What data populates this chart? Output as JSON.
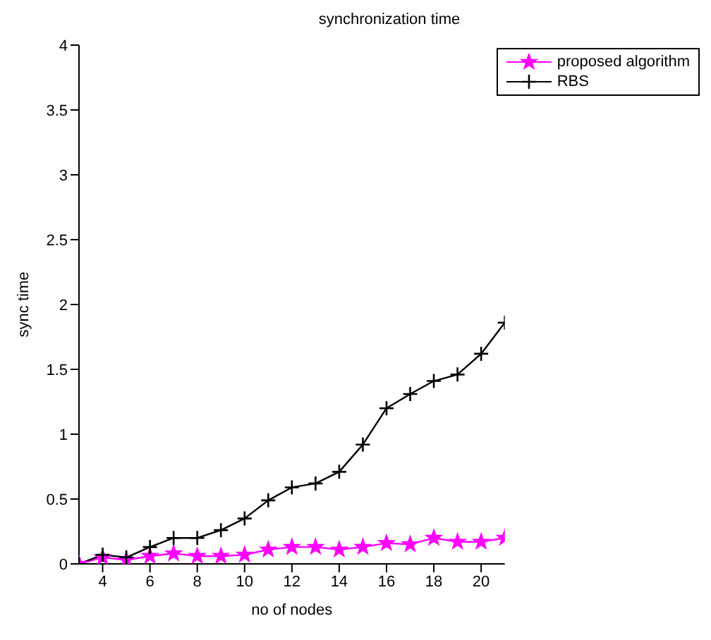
{
  "chart_data": {
    "type": "line",
    "title": "synchronization time",
    "xlabel": "no of nodes",
    "ylabel": "sync time",
    "x": [
      3,
      4,
      5,
      6,
      7,
      8,
      9,
      10,
      11,
      12,
      13,
      14,
      15,
      16,
      17,
      18,
      19,
      20,
      21
    ],
    "series": [
      {
        "name": "proposed algorithm",
        "color": "#ff00ff",
        "marker": "star",
        "values": [
          0,
          0.05,
          0.03,
          0.06,
          0.08,
          0.06,
          0.06,
          0.07,
          0.11,
          0.13,
          0.13,
          0.11,
          0.13,
          0.16,
          0.15,
          0.2,
          0.17,
          0.17,
          0.2
        ]
      },
      {
        "name": "RBS",
        "color": "#000000",
        "marker": "cross",
        "values": [
          0,
          0.07,
          0.05,
          0.13,
          0.2,
          0.2,
          0.26,
          0.35,
          0.49,
          0.59,
          0.62,
          0.71,
          0.92,
          1.2,
          1.31,
          1.41,
          1.46,
          1.62,
          1.86
        ]
      }
    ],
    "xlim": [
      3,
      21
    ],
    "xticks": [
      4,
      6,
      8,
      10,
      12,
      14,
      16,
      18,
      20
    ],
    "ylim": [
      0,
      4
    ],
    "yticks": [
      0,
      0.5,
      1,
      1.5,
      2,
      2.5,
      3,
      3.5,
      4
    ],
    "grid": false,
    "legend": "top right",
    "line_style": "solid"
  }
}
